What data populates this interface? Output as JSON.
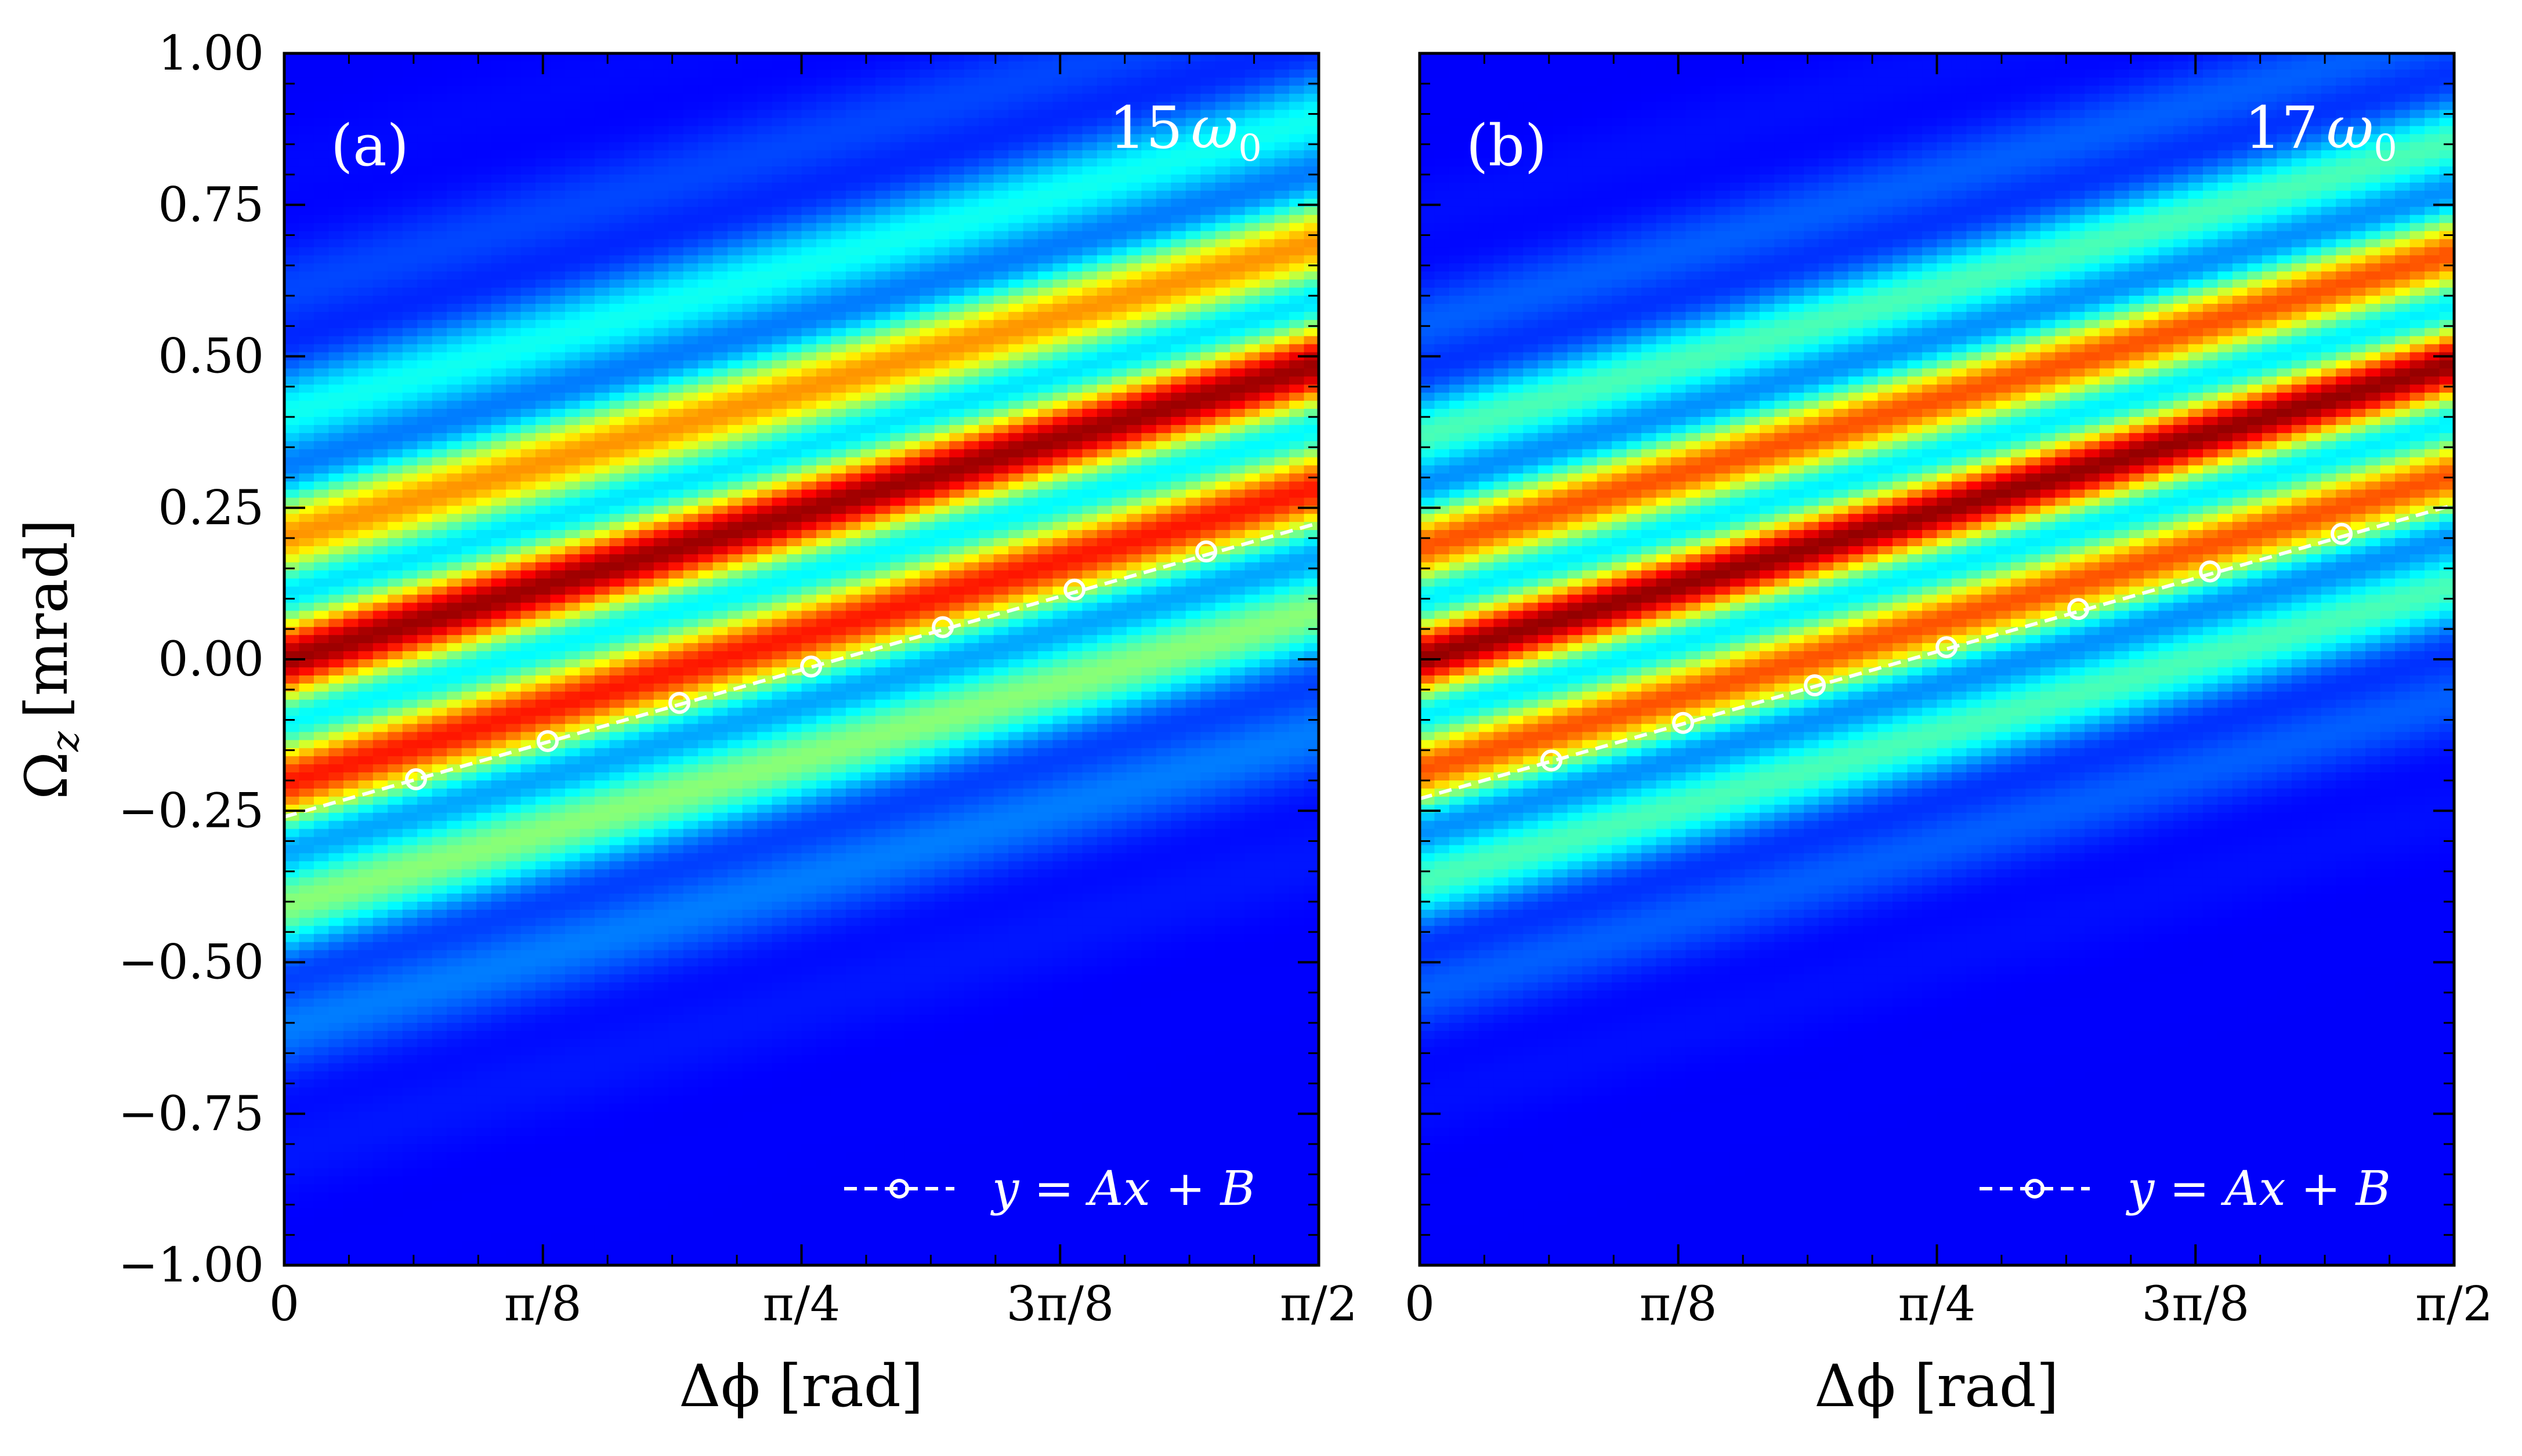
{
  "figure": {
    "ylabel": "Ω",
    "ylabel_sub": "z",
    "ylabel_unit": "[mrad]"
  },
  "chart_data": [
    {
      "type": "heatmap",
      "panel_label": "(a)",
      "harmonic": "15",
      "harmonic_symbol": "ω",
      "harmonic_sub": "0",
      "xlabel": "Δϕ [rad]",
      "ylabel": "Ω_z [mrad]",
      "xlim": [
        0,
        1.5708
      ],
      "ylim": [
        -1.0,
        1.0
      ],
      "xticks": [
        0,
        0.3927,
        0.7854,
        1.1781,
        1.5708
      ],
      "xtick_labels": [
        "0",
        "π/8",
        "π/4",
        "3π/8",
        "π/2"
      ],
      "yticks": [
        -1.0,
        -0.75,
        -0.5,
        -0.25,
        0.0,
        0.25,
        0.5,
        0.75,
        1.0
      ],
      "ytick_labels": [
        "−1.00",
        "−0.75",
        "−0.50",
        "−0.25",
        "0.00",
        "0.25",
        "0.50",
        "0.75",
        "1.00"
      ],
      "colormap": "jet",
      "heatmap_model": {
        "fringe_slope": 0.31,
        "fringe_period": 0.21,
        "envelope_center": -0.04,
        "envelope_width": 0.42
      },
      "fit": {
        "label": "y = Ax + B",
        "style": "dashed-with-circles",
        "x": [
          0.0,
          0.2,
          0.4,
          0.6,
          0.8,
          1.0,
          1.2,
          1.4,
          1.5708
        ],
        "y": [
          -0.26,
          -0.198,
          -0.135,
          -0.072,
          -0.012,
          0.053,
          0.115,
          0.178,
          0.225
        ]
      },
      "legend_location": "lower-right"
    },
    {
      "type": "heatmap",
      "panel_label": "(b)",
      "harmonic": "17",
      "harmonic_symbol": "ω",
      "harmonic_sub": "0",
      "xlabel": "Δϕ [rad]",
      "ylabel": "Ω_z [mrad]",
      "xlim": [
        0,
        1.5708
      ],
      "ylim": [
        -1.0,
        1.0
      ],
      "xticks": [
        0,
        0.3927,
        0.7854,
        1.1781,
        1.5708
      ],
      "xtick_labels": [
        "0",
        "π/8",
        "π/4",
        "3π/8",
        "π/2"
      ],
      "yticks": [
        -1.0,
        -0.75,
        -0.5,
        -0.25,
        0.0,
        0.25,
        0.5,
        0.75,
        1.0
      ],
      "colormap": "jet",
      "heatmap_model": {
        "fringe_slope": 0.31,
        "fringe_period": 0.19,
        "envelope_center": 0.0,
        "envelope_width": 0.38
      },
      "fit": {
        "label": "y = Ax + B",
        "style": "dashed-with-circles",
        "x": [
          0.0,
          0.2,
          0.4,
          0.6,
          0.8,
          1.0,
          1.2,
          1.4,
          1.5708
        ],
        "y": [
          -0.23,
          -0.167,
          -0.105,
          -0.043,
          0.02,
          0.083,
          0.145,
          0.207,
          0.255
        ]
      },
      "legend_location": "lower-right"
    }
  ]
}
